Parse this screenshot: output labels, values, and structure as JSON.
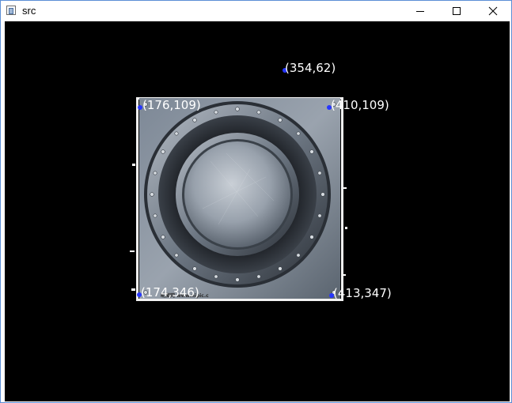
{
  "window": {
    "title": "src",
    "minimize_icon": "minimize-icon",
    "maximize_icon": "maximize-icon",
    "close_icon": "close-icon"
  },
  "image": {
    "description_icon": "metal-porthole-image",
    "watermark": "昵图网 www.nipic.c"
  },
  "points": [
    {
      "label": "(354,62)"
    },
    {
      "label": "(176,109)"
    },
    {
      "label": "(410,109)"
    },
    {
      "label": "(174,346)"
    },
    {
      "label": "(413,347)"
    }
  ],
  "colors": {
    "canvas": "#000000",
    "point": "#2636ff",
    "label": "#ffffff",
    "titlebar": "#ffffff",
    "window_border": "#5b8fd6"
  }
}
